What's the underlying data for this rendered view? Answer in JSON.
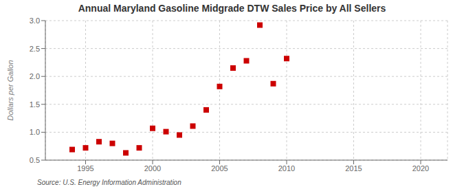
{
  "chart_data": {
    "type": "scatter",
    "title": "Annual Maryland Gasoline Midgrade DTW Sales Price by All Sellers",
    "ylabel": "Dollars per Gallon",
    "annotations": [
      "Source: U.S. Energy Information Administration"
    ],
    "x": [
      1994,
      1995,
      1996,
      1997,
      1998,
      1999,
      2000,
      2001,
      2002,
      2003,
      2004,
      2005,
      2006,
      2007,
      2008,
      2009,
      2010
    ],
    "values": [
      0.69,
      0.72,
      0.83,
      0.8,
      0.63,
      0.72,
      1.07,
      1.01,
      0.95,
      1.11,
      1.4,
      1.82,
      2.15,
      2.28,
      2.92,
      1.87,
      2.32
    ],
    "color": "#cc0000",
    "marker": "square",
    "xlim": [
      1992,
      2022
    ],
    "ylim": [
      0.5,
      3.0
    ],
    "xticks": [
      1995,
      2000,
      2005,
      2010,
      2015,
      2020
    ],
    "yticks": [
      0.5,
      {
        "value": 1,
        "label": "1.0"
      },
      1.5,
      {
        "value": 2,
        "label": "2.0"
      },
      2.5,
      {
        "value": 3,
        "label": "3.0"
      }
    ],
    "grid": true
  }
}
